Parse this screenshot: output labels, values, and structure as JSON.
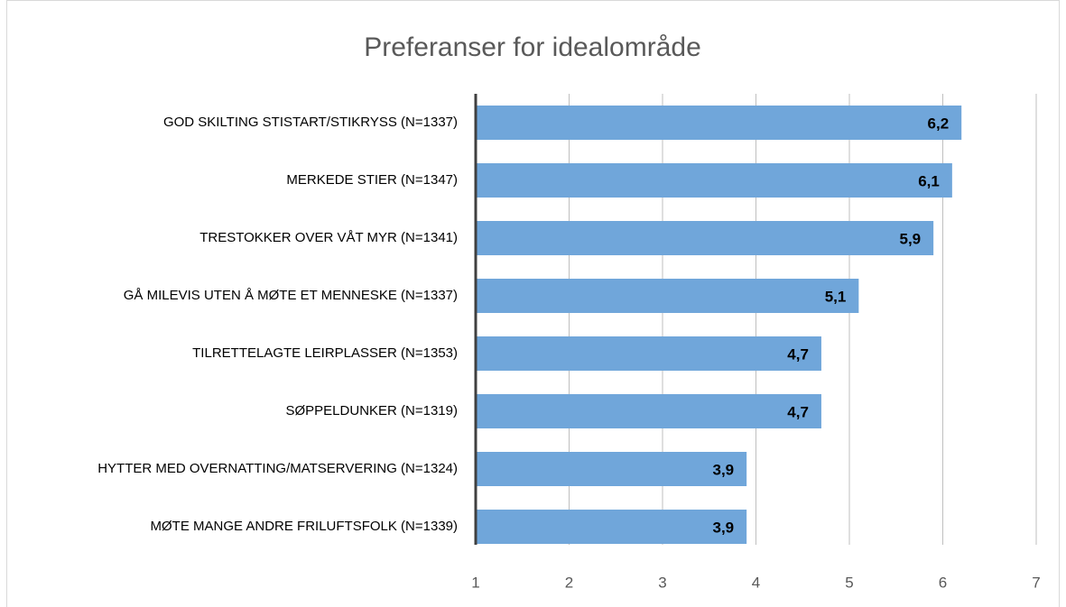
{
  "chart_data": {
    "type": "bar",
    "orientation": "horizontal",
    "title": "Preferanser for idealområde",
    "categories": [
      "GOD SKILTING STISTART/STIKRYSS  (N=1337)",
      "MERKEDE STIER  (N=1347)",
      "TRESTOKKER OVER VÅT MYR  (N=1341)",
      "GÅ MILEVIS UTEN Å MØTE ET MENNESKE  (N=1337)",
      "TILRETTELAGTE LEIRPLASSER (N=1353)",
      "SØPPELDUNKER  (N=1319)",
      "HYTTER MED OVERNATTING/MATSERVERING  (N=1324)",
      "MØTE MANGE ANDRE FRILUFTSFOLK (N=1339)"
    ],
    "values": [
      6.2,
      6.1,
      5.9,
      5.1,
      4.7,
      4.7,
      3.9,
      3.9
    ],
    "value_labels": [
      "6,2",
      "6,1",
      "5,9",
      "5,1",
      "4,7",
      "4,7",
      "3,9",
      "3,9"
    ],
    "color": "#70a6da",
    "xlim": [
      1,
      7
    ],
    "xticks": [
      1,
      2,
      3,
      4,
      5,
      6,
      7
    ],
    "grid": true
  }
}
